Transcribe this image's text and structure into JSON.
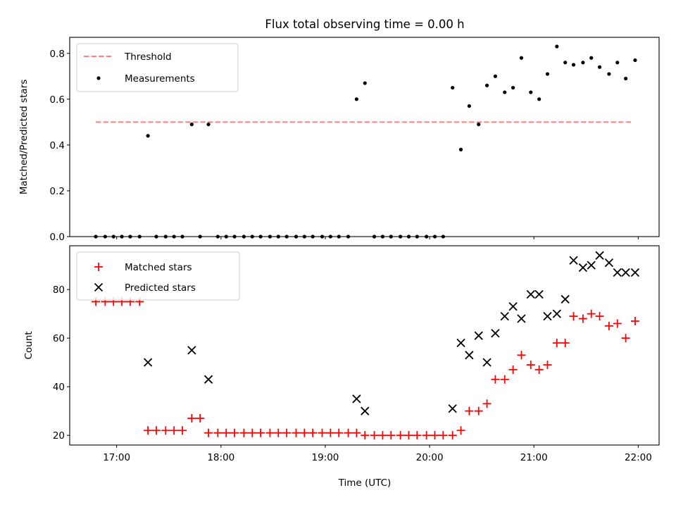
{
  "chart_data": [
    {
      "type": "scatter",
      "title": "Flux total observing time = 0.00 h",
      "xlabel": "",
      "ylabel": "Matched/Predicted stars",
      "xlim": [
        16.55,
        22.2
      ],
      "ylim": [
        0.0,
        0.87
      ],
      "yticks": [
        0.0,
        0.2,
        0.4,
        0.6,
        0.8
      ],
      "ytick_labels": [
        "0.0",
        "0.2",
        "0.4",
        "0.6",
        "0.8"
      ],
      "legend_position": "top-left",
      "series": [
        {
          "name": "Threshold",
          "style": "dashed-line",
          "color": "#ff7f7f",
          "x": [
            16.8,
            21.95
          ],
          "y": [
            0.5,
            0.5
          ]
        },
        {
          "name": "Measurements",
          "style": "dot",
          "color": "#000000",
          "x": [
            16.8,
            16.89,
            16.97,
            17.05,
            17.13,
            17.22,
            17.3,
            17.38,
            17.47,
            17.55,
            17.63,
            17.72,
            17.8,
            17.88,
            17.97,
            18.05,
            18.13,
            18.22,
            18.3,
            18.38,
            18.47,
            18.55,
            18.63,
            18.72,
            18.8,
            18.88,
            18.97,
            19.05,
            19.13,
            19.22,
            19.3,
            19.38,
            19.47,
            19.55,
            19.63,
            19.72,
            19.8,
            19.88,
            19.97,
            20.05,
            20.13,
            20.22,
            20.3,
            20.38,
            20.47,
            20.55,
            20.63,
            20.72,
            20.8,
            20.88,
            20.97,
            21.05,
            21.13,
            21.22,
            21.3,
            21.38,
            21.47,
            21.55,
            21.63,
            21.72,
            21.8,
            21.88,
            21.97
          ],
          "y": [
            0.0,
            0.0,
            0.0,
            0.0,
            0.0,
            0.0,
            0.44,
            0.0,
            0.0,
            0.0,
            0.0,
            0.49,
            0.0,
            0.49,
            0.0,
            0.0,
            0.0,
            0.0,
            0.0,
            0.0,
            0.0,
            0.0,
            0.0,
            0.0,
            0.0,
            0.0,
            0.0,
            0.0,
            0.0,
            0.0,
            0.6,
            0.67,
            0.0,
            0.0,
            0.0,
            0.0,
            0.0,
            0.0,
            0.0,
            0.0,
            0.0,
            0.65,
            0.38,
            0.57,
            0.49,
            0.66,
            0.7,
            0.63,
            0.65,
            0.78,
            0.63,
            0.6,
            0.71,
            0.83,
            0.76,
            0.75,
            0.76,
            0.78,
            0.74,
            0.71,
            0.76,
            0.69,
            0.77
          ]
        }
      ]
    },
    {
      "type": "scatter",
      "title": "",
      "xlabel": "Time (UTC)",
      "ylabel": "Count",
      "xlim": [
        16.55,
        22.2
      ],
      "ylim": [
        16,
        98
      ],
      "yticks": [
        20,
        40,
        60,
        80
      ],
      "ytick_labels": [
        "20",
        "40",
        "60",
        "80"
      ],
      "xticks": [
        17,
        18,
        19,
        20,
        21,
        22
      ],
      "xtick_labels": [
        "17:00",
        "18:00",
        "19:00",
        "20:00",
        "21:00",
        "22:00"
      ],
      "legend_position": "top-left",
      "series": [
        {
          "name": "Matched stars",
          "style": "plus",
          "color": "#ff0000",
          "x": [
            16.8,
            16.89,
            16.97,
            17.05,
            17.13,
            17.22,
            17.3,
            17.38,
            17.47,
            17.55,
            17.63,
            17.72,
            17.8,
            17.88,
            17.97,
            18.05,
            18.13,
            18.22,
            18.3,
            18.38,
            18.47,
            18.55,
            18.63,
            18.72,
            18.8,
            18.88,
            18.97,
            19.05,
            19.13,
            19.22,
            19.3,
            19.38,
            19.47,
            19.55,
            19.63,
            19.72,
            19.8,
            19.88,
            19.97,
            20.05,
            20.13,
            20.22,
            20.3,
            20.38,
            20.47,
            20.55,
            20.63,
            20.72,
            20.8,
            20.88,
            20.97,
            21.05,
            21.13,
            21.22,
            21.3,
            21.38,
            21.47,
            21.55,
            21.63,
            21.72,
            21.8,
            21.88,
            21.97
          ],
          "y": [
            75,
            75,
            75,
            75,
            75,
            75,
            22,
            22,
            22,
            22,
            22,
            27,
            27,
            21,
            21,
            21,
            21,
            21,
            21,
            21,
            21,
            21,
            21,
            21,
            21,
            21,
            21,
            21,
            21,
            21,
            21,
            20,
            20,
            20,
            20,
            20,
            20,
            20,
            20,
            20,
            20,
            20,
            22,
            30,
            30,
            33,
            43,
            43,
            47,
            53,
            49,
            47,
            49,
            58,
            58,
            69,
            68,
            70,
            69,
            65,
            66,
            60,
            67
          ]
        },
        {
          "name": "Predicted stars",
          "style": "x",
          "color": "#000000",
          "x": [
            17.3,
            17.72,
            17.88,
            19.3,
            19.38,
            20.22,
            20.3,
            20.38,
            20.47,
            20.55,
            20.63,
            20.72,
            20.8,
            20.88,
            20.97,
            21.05,
            21.13,
            21.22,
            21.3,
            21.38,
            21.47,
            21.55,
            21.63,
            21.72,
            21.8,
            21.88,
            21.97
          ],
          "y": [
            50,
            55,
            43,
            35,
            30,
            31,
            58,
            53,
            61,
            50,
            62,
            69,
            73,
            68,
            78,
            78,
            69,
            70,
            76,
            92,
            89,
            90,
            94,
            91,
            87,
            87,
            87
          ]
        }
      ]
    }
  ]
}
